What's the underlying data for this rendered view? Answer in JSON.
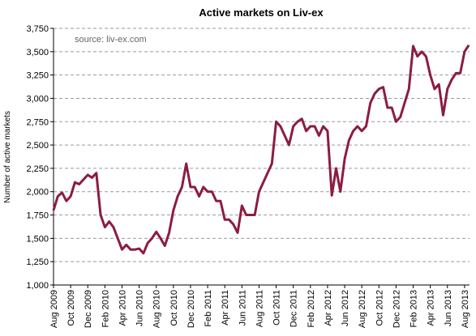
{
  "chart_data": {
    "type": "line",
    "title": "Active markets on Liv-ex",
    "annotation": "source: liv-ex.com",
    "y_label": "Number of active markets",
    "categories": [
      "Aug 2009",
      null,
      null,
      null,
      "Oct 2009",
      null,
      null,
      null,
      "Dec 2009",
      null,
      null,
      null,
      "Feb 2010",
      null,
      null,
      null,
      "Apr 2010",
      null,
      null,
      null,
      "Jun 2010",
      null,
      null,
      null,
      "Aug 2010",
      null,
      null,
      null,
      "Oct 2010",
      null,
      null,
      null,
      "Dec 2010",
      null,
      null,
      null,
      "Feb 2011",
      null,
      null,
      null,
      "Apr 2011",
      null,
      null,
      null,
      "Jun 2011",
      null,
      null,
      null,
      "Aug 2011",
      null,
      null,
      null,
      "Oct 2011",
      null,
      null,
      null,
      "Dec 2011",
      null,
      null,
      null,
      "Feb 2012",
      null,
      null,
      null,
      "Apr 2012",
      null,
      null,
      null,
      "Jun 2012",
      null,
      null,
      null,
      "Aug 2012",
      null,
      null,
      null,
      "Oct 2012",
      null,
      null,
      null,
      "Dec 2012",
      null,
      null,
      null,
      "Feb 2013",
      null,
      null,
      null,
      "Apr 2013",
      null,
      null,
      null,
      "Jun 2013",
      null,
      null,
      null,
      "Aug 2013",
      null
    ],
    "series": [
      {
        "name": "Active markets",
        "color": "#8c1c42",
        "values": [
          1800,
          1950,
          1990,
          1900,
          1950,
          2100,
          2080,
          2130,
          2180,
          2150,
          2200,
          1750,
          1620,
          1680,
          1620,
          1500,
          1380,
          1430,
          1380,
          1380,
          1390,
          1340,
          1450,
          1500,
          1570,
          1500,
          1420,
          1560,
          1800,
          1950,
          2050,
          2300,
          2050,
          2050,
          1950,
          2050,
          2000,
          2000,
          1900,
          1900,
          1700,
          1700,
          1650,
          1560,
          1850,
          1750,
          1750,
          1750,
          2000,
          2100,
          2200,
          2300,
          2750,
          2700,
          2600,
          2500,
          2700,
          2750,
          2780,
          2650,
          2700,
          2700,
          2600,
          2700,
          2650,
          1960,
          2250,
          2000,
          2350,
          2550,
          2650,
          2700,
          2650,
          2700,
          2950,
          3050,
          3100,
          3120,
          2900,
          2900,
          2750,
          2800,
          2950,
          3100,
          3560,
          3450,
          3500,
          3450,
          3250,
          3100,
          3150,
          2820,
          3100,
          3200,
          3270,
          3270,
          3500,
          3570
        ]
      }
    ],
    "ylim": [
      1000,
      3750
    ],
    "yticks": [
      {
        "value": 1000,
        "label": "1,000"
      },
      {
        "value": 1250,
        "label": "1,250"
      },
      {
        "value": 1500,
        "label": "1,500"
      },
      {
        "value": 1750,
        "label": "1,750"
      },
      {
        "value": 2000,
        "label": "2,000"
      },
      {
        "value": 2250,
        "label": "2,250"
      },
      {
        "value": 2500,
        "label": "2,500"
      },
      {
        "value": 2750,
        "label": "2,750"
      },
      {
        "value": 3000,
        "label": "3,000"
      },
      {
        "value": 3250,
        "label": "3,250"
      },
      {
        "value": 3500,
        "label": "3,500"
      },
      {
        "value": 3750,
        "label": "3,750"
      }
    ],
    "grid": true
  }
}
